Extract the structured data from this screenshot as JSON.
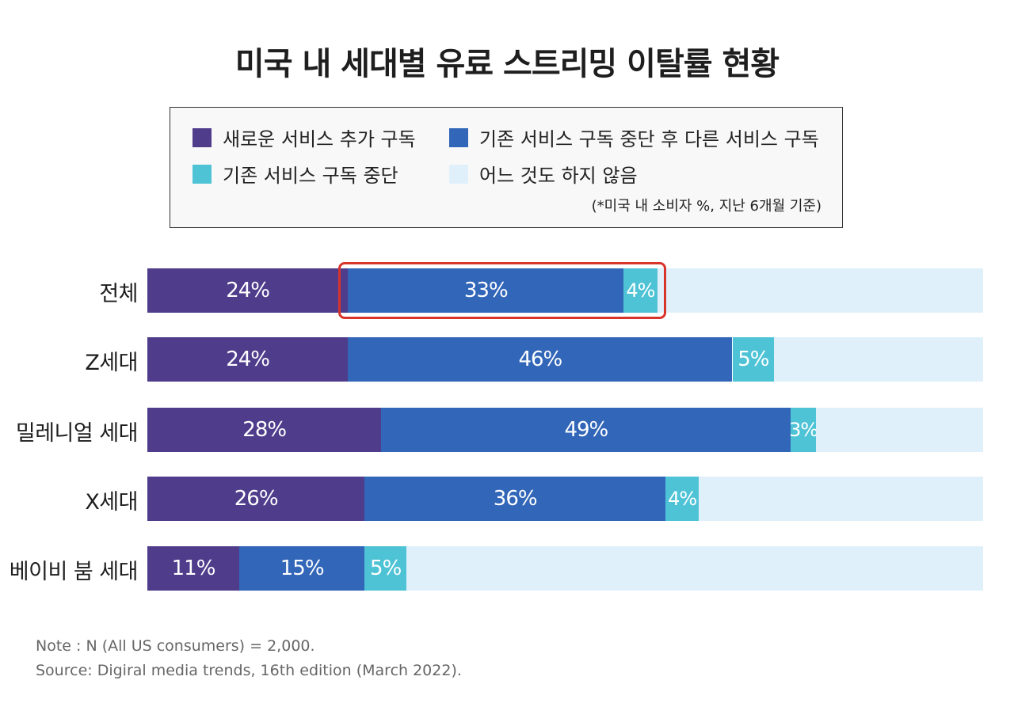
{
  "chart_data": {
    "type": "bar",
    "orientation": "horizontal-stacked-100",
    "title": "미국 내 세대별 유료 스트리밍 이탈률 현황",
    "categories": [
      "전체",
      "Z세대",
      "밀레니얼 세대",
      "X세대",
      "베이비 붐 세대"
    ],
    "series": [
      {
        "name": "새로운 서비스 추가 구독",
        "color": "#4f3d8c",
        "values": [
          24,
          24,
          28,
          26,
          11
        ],
        "labels": [
          "24%",
          "24%",
          "28%",
          "26%",
          "11%"
        ]
      },
      {
        "name": "기존 서비스 구독 중단 후 다른 서비스 구독",
        "color": "#3266b8",
        "values": [
          33,
          46,
          49,
          36,
          15
        ],
        "labels": [
          "33%",
          "46%",
          "49%",
          "36%",
          "15%"
        ]
      },
      {
        "name": "기존 서비스 구독 중단",
        "color": "#4fc3d6",
        "values": [
          4,
          5,
          3,
          4,
          5
        ],
        "labels": [
          "4%",
          "5%",
          "3%",
          "4%",
          "5%"
        ]
      },
      {
        "name": "어느 것도 하지 않음",
        "color": "#e0f0fb",
        "values": [
          39,
          25,
          20,
          34,
          69
        ]
      }
    ],
    "xlim": [
      0,
      100
    ],
    "highlight": {
      "category": "전체",
      "series": [
        "기존 서비스 구독 중단 후 다른 서비스 구독",
        "기존 서비스 구독 중단"
      ]
    },
    "legend_placement": "top",
    "legend_note": "(*미국 내 소비자 %, 지난 6개월 기준)"
  },
  "footer": {
    "note": "Note : N (All US consumers) = 2,000.",
    "source": "Source: Digiral media trends, 16th edition (March 2022)."
  },
  "colors": {
    "highlight_border": "#d9342b"
  }
}
